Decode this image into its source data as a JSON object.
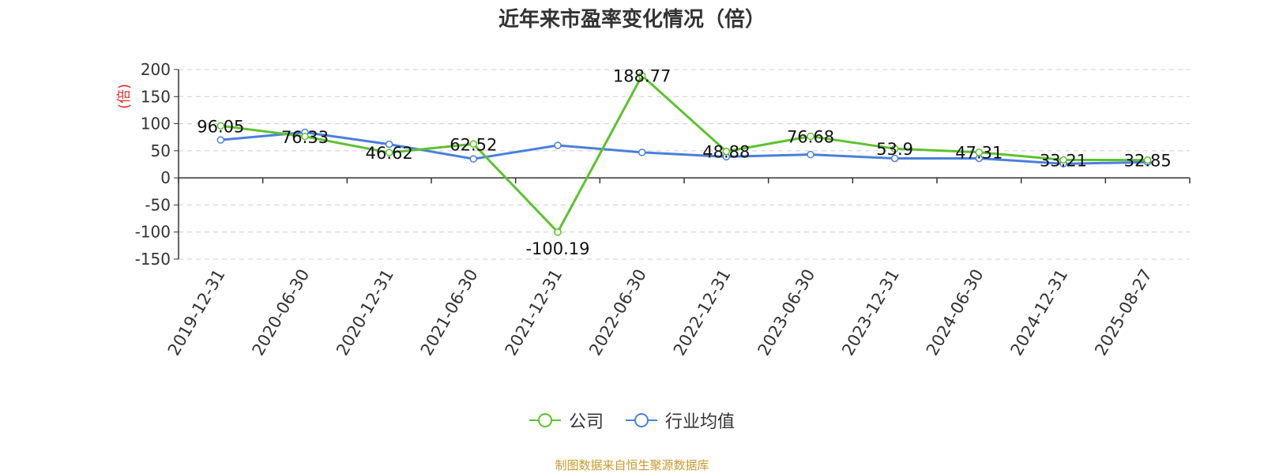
{
  "chart_data": {
    "type": "line",
    "title": "近年来市盈率变化情况（倍）",
    "ylabel": "(倍)",
    "xlabel": "",
    "categories": [
      "2019-12-31",
      "2020-06-30",
      "2020-12-31",
      "2021-06-30",
      "2021-12-31",
      "2022-06-30",
      "2022-12-31",
      "2023-06-30",
      "2023-12-31",
      "2024-06-30",
      "2024-12-31",
      "2025-08-27"
    ],
    "ylim": [
      -150,
      200
    ],
    "yticks": [
      200,
      150,
      100,
      50,
      0,
      -50,
      -100,
      -150
    ],
    "grid": true,
    "legend_position": "bottom",
    "series": [
      {
        "name": "公司",
        "color": "#5dc22d",
        "values": [
          96.05,
          76.33,
          46.62,
          62.52,
          -100.19,
          188.77,
          48.88,
          76.68,
          53.9,
          47.31,
          33.21,
          32.85
        ],
        "labels": [
          "96.05",
          "76.33",
          "46.62",
          "62.52",
          "-100.19",
          "188.77",
          "48.88",
          "76.68",
          "53.9",
          "47.31",
          "33.21",
          "32.85"
        ]
      },
      {
        "name": "行业均值",
        "color": "#4a7fdc",
        "values": [
          70,
          84,
          62,
          35,
          60,
          47,
          39,
          43,
          36,
          36,
          26,
          29
        ]
      }
    ]
  },
  "footer": {
    "source": "制图数据来自恒生聚源数据库"
  }
}
